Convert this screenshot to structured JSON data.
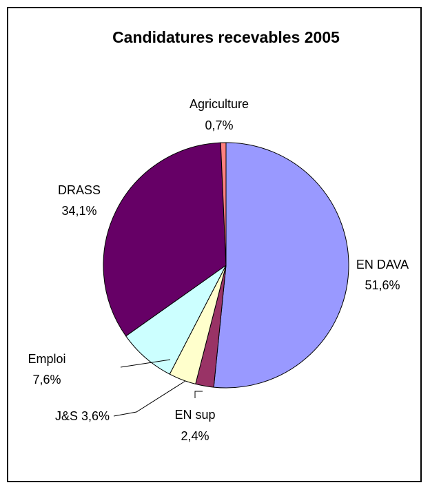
{
  "chart_data": {
    "type": "pie",
    "title": "Candidatures recevables 2005",
    "start_angle_deg": 0,
    "direction": "clockwise",
    "slices": [
      {
        "name": "EN DAVA",
        "value": 51.6,
        "value_label": "51,6%",
        "color": "#9999ff"
      },
      {
        "name": "EN sup",
        "value": 2.4,
        "value_label": "2,4%",
        "color": "#993366"
      },
      {
        "name": "J&S",
        "value": 3.6,
        "value_label": "3,6%",
        "color": "#ffffcc"
      },
      {
        "name": "Emploi",
        "value": 7.6,
        "value_label": "7,6%",
        "color": "#ccffff"
      },
      {
        "name": "DRASS",
        "value": 34.1,
        "value_label": "34,1%",
        "color": "#660066"
      },
      {
        "name": "Agriculture",
        "value": 0.7,
        "value_label": "0,7%",
        "color": "#ff8080"
      }
    ],
    "legend": "none"
  }
}
